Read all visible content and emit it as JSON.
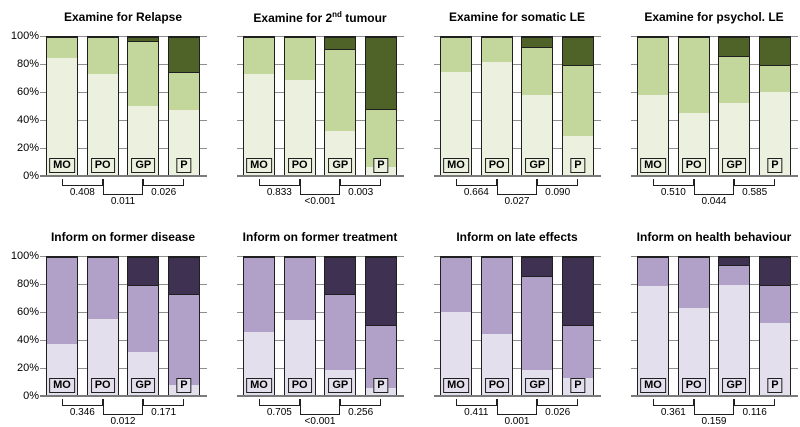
{
  "figure_title": "",
  "colors": {
    "green_light": "#EBF1DE",
    "green_medium": "#C3D69B",
    "green_dark": "#4F6228",
    "purple_light": "#E4DFEC",
    "purple_medium": "#B1A0C7",
    "purple_dark": "#3F3151",
    "gridline": "#8F8F8F",
    "axis": "#7A7A7A",
    "bar_border": "#1F1F1F"
  },
  "y_axis": {
    "tick_labels": [
      "100%",
      "80%",
      "60%",
      "40%",
      "20%",
      "0%"
    ],
    "min": 0,
    "max": 100,
    "unit": "%",
    "grid": true
  },
  "categories": [
    "MO",
    "PO",
    "GP",
    "P"
  ],
  "p_value_pairs": [
    "MO-PO",
    "PO-GP",
    "GP-P"
  ],
  "chart_data": [
    {
      "type": "bar",
      "subtype": "stacked-100",
      "theme": "green",
      "title": "Examine for Relapse",
      "categories": [
        "MO",
        "PO",
        "GP",
        "P"
      ],
      "series": [
        {
          "name": "light",
          "values": [
            85,
            73,
            50,
            47
          ]
        },
        {
          "name": "medium",
          "values": [
            15,
            27,
            47,
            28
          ]
        },
        {
          "name": "dark",
          "values": [
            0,
            0,
            3,
            25
          ]
        }
      ],
      "p_values": [
        "0.408",
        "0.011",
        "0.026"
      ]
    },
    {
      "type": "bar",
      "subtype": "stacked-100",
      "theme": "green",
      "title": "Examine for 2nd tumour",
      "title_prefix": "Examine for 2",
      "title_sup": "nd",
      "title_suffix": " tumour",
      "categories": [
        "MO",
        "PO",
        "GP",
        "P"
      ],
      "series": [
        {
          "name": "light",
          "values": [
            73,
            69,
            32,
            6
          ]
        },
        {
          "name": "medium",
          "values": [
            27,
            31,
            59,
            42
          ]
        },
        {
          "name": "dark",
          "values": [
            0,
            0,
            9,
            52
          ]
        }
      ],
      "p_values": [
        "0.833",
        "<0.001",
        "0.003"
      ]
    },
    {
      "type": "bar",
      "subtype": "stacked-100",
      "theme": "green",
      "title": "Examine for somatic LE",
      "categories": [
        "MO",
        "PO",
        "GP",
        "P"
      ],
      "series": [
        {
          "name": "light",
          "values": [
            75,
            82,
            58,
            28
          ]
        },
        {
          "name": "medium",
          "values": [
            25,
            18,
            35,
            52
          ]
        },
        {
          "name": "dark",
          "values": [
            0,
            0,
            7,
            20
          ]
        }
      ],
      "p_values": [
        "0.664",
        "0.027",
        "0.090"
      ]
    },
    {
      "type": "bar",
      "subtype": "stacked-100",
      "theme": "green",
      "title": "Examine for psychol. LE",
      "categories": [
        "MO",
        "PO",
        "GP",
        "P"
      ],
      "series": [
        {
          "name": "light",
          "values": [
            58,
            45,
            52,
            60
          ]
        },
        {
          "name": "medium",
          "values": [
            42,
            55,
            34,
            20
          ]
        },
        {
          "name": "dark",
          "values": [
            0,
            0,
            14,
            20
          ]
        }
      ],
      "p_values": [
        "0.510",
        "0.044",
        "0.585"
      ]
    },
    {
      "type": "bar",
      "subtype": "stacked-100",
      "theme": "purple",
      "title": "Inform on former disease",
      "categories": [
        "MO",
        "PO",
        "GP",
        "P"
      ],
      "series": [
        {
          "name": "light",
          "values": [
            37,
            55,
            31,
            7
          ]
        },
        {
          "name": "medium",
          "values": [
            63,
            45,
            49,
            66
          ]
        },
        {
          "name": "dark",
          "values": [
            0,
            0,
            20,
            27
          ]
        }
      ],
      "p_values": [
        "0.346",
        "0.012",
        "0.171"
      ]
    },
    {
      "type": "bar",
      "subtype": "stacked-100",
      "theme": "purple",
      "title": "Inform on former treatment",
      "categories": [
        "MO",
        "PO",
        "GP",
        "P"
      ],
      "series": [
        {
          "name": "light",
          "values": [
            46,
            54,
            18,
            5
          ]
        },
        {
          "name": "medium",
          "values": [
            54,
            46,
            55,
            46
          ]
        },
        {
          "name": "dark",
          "values": [
            0,
            0,
            27,
            49
          ]
        }
      ],
      "p_values": [
        "0.705",
        "<0.001",
        "0.256"
      ]
    },
    {
      "type": "bar",
      "subtype": "stacked-100",
      "theme": "purple",
      "title": "Inform on late effects",
      "categories": [
        "MO",
        "PO",
        "GP",
        "P"
      ],
      "series": [
        {
          "name": "light",
          "values": [
            60,
            44,
            18,
            12
          ]
        },
        {
          "name": "medium",
          "values": [
            40,
            56,
            68,
            39
          ]
        },
        {
          "name": "dark",
          "values": [
            0,
            0,
            14,
            49
          ]
        }
      ],
      "p_values": [
        "0.411",
        "0.001",
        "0.026"
      ]
    },
    {
      "type": "bar",
      "subtype": "stacked-100",
      "theme": "purple",
      "title": "Inform on health behaviour",
      "categories": [
        "MO",
        "PO",
        "GP",
        "P"
      ],
      "series": [
        {
          "name": "light",
          "values": [
            79,
            63,
            80,
            52
          ]
        },
        {
          "name": "medium",
          "values": [
            21,
            37,
            14,
            28
          ]
        },
        {
          "name": "dark",
          "values": [
            0,
            0,
            6,
            20
          ]
        }
      ],
      "p_values": [
        "0.361",
        "0.159",
        "0.116"
      ]
    }
  ]
}
